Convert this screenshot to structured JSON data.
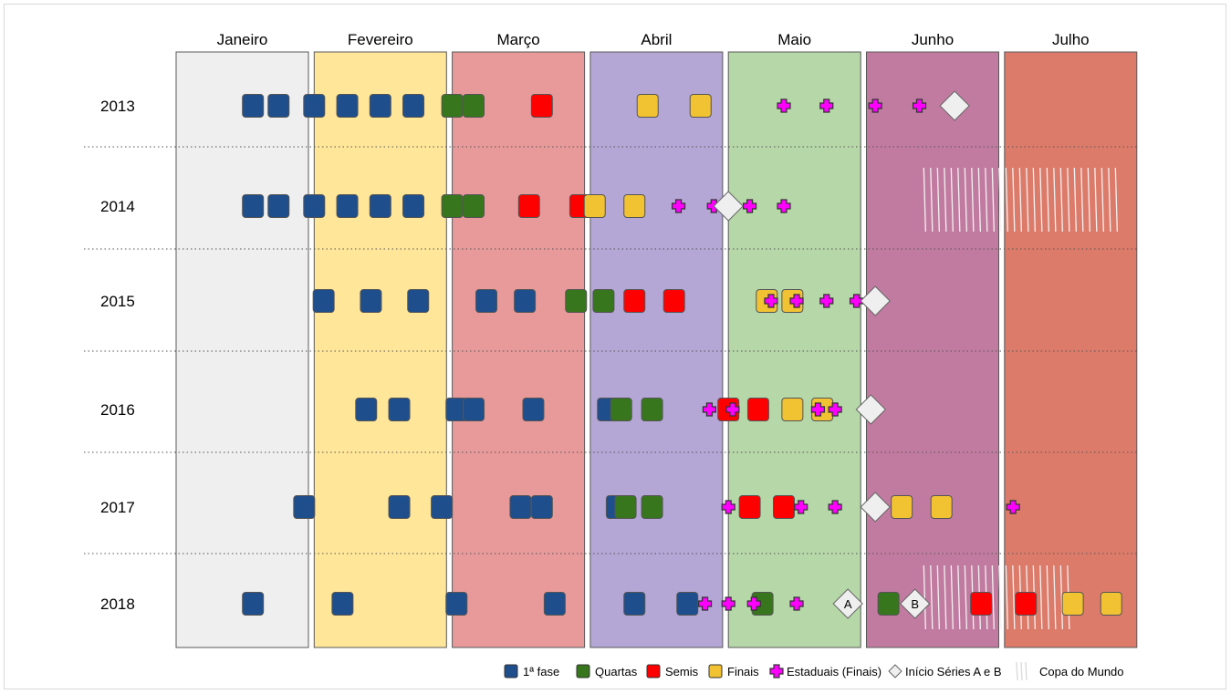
{
  "chart_data": {
    "type": "scatter",
    "title": "",
    "months": [
      "Janeiro",
      "Fevereiro",
      "Março",
      "Abril",
      "Maio",
      "Junho",
      "Julho"
    ],
    "month_colors": [
      "#efefef",
      "#ffe699",
      "#e89a9a",
      "#b4a7d6",
      "#b6d7a8",
      "#c27ba0",
      "#dd7b6a"
    ],
    "years": [
      "2013",
      "2014",
      "2015",
      "2016",
      "2017",
      "2018"
    ],
    "x_unit": "dia do ano",
    "xlim": [
      1,
      212
    ],
    "categories": {
      "fase1": {
        "label": "1ª fase",
        "color": "#1f4e8c"
      },
      "quartas": {
        "label": "Quartas",
        "color": "#38761d"
      },
      "semis": {
        "label": "Semis",
        "color": "#ff0000"
      },
      "finais": {
        "label": "Finais",
        "color": "#f1c232"
      },
      "estaduais": {
        "label": "Estaduais (Finais)",
        "color": "#ff00ff"
      },
      "inicio": {
        "label": "Início Séries A e B",
        "color": "#efefef"
      },
      "copa": {
        "label": "Copa do Mundo",
        "color": "#ffffff"
      }
    },
    "legend_order": [
      "fase1",
      "quartas",
      "semis",
      "finais",
      "estaduais",
      "inicio",
      "copa"
    ],
    "legend_position": "bottom-right",
    "series": [
      {
        "year": "2013",
        "fase1": [
          19,
          25,
          32,
          39,
          46,
          53
        ],
        "quartas": [
          60,
          65
        ],
        "semis": [
          81
        ],
        "finais": [
          104,
          116
        ],
        "estaduais": [
          134,
          144,
          154,
          164
        ],
        "inicio": [
          {
            "day": 172,
            "label": ""
          }
        ],
        "copa": [],
        "semis_late": [],
        "quartas_late": [],
        "finais_late": [],
        "estaduais_late": []
      },
      {
        "year": "2014",
        "fase1": [
          19,
          25,
          32,
          39,
          46,
          53
        ],
        "quartas": [
          60,
          65
        ],
        "semis": [
          78
        ],
        "semis2": [
          90
        ],
        "finais": [
          92,
          101
        ],
        "estaduais": [
          111,
          119,
          126,
          134
        ],
        "inicio": [
          {
            "day": 121,
            "label": ""
          }
        ],
        "copa": [
          [
            165,
            208
          ]
        ]
      },
      {
        "year": "2015",
        "fase1": [
          34,
          44,
          54,
          68,
          77
        ],
        "quartas": [
          89,
          94
        ],
        "semis": [
          101,
          110
        ],
        "finais": [
          130,
          136
        ],
        "estaduais": [
          131,
          137,
          144,
          151
        ],
        "inicio": [
          {
            "day": 154,
            "label": ""
          }
        ],
        "copa": []
      },
      {
        "year": "2016",
        "fase1": [
          43,
          50,
          61,
          65,
          79,
          95
        ],
        "quartas": [
          98,
          105
        ],
        "semis": [
          121,
          128
        ],
        "finais": [
          136,
          143
        ],
        "estaduais": [
          118,
          122,
          142,
          146
        ],
        "inicio": [
          {
            "day": 153,
            "label": ""
          }
        ],
        "copa": []
      },
      {
        "year": "2017",
        "fase1": [
          31,
          50,
          59,
          76,
          81,
          97
        ],
        "quartas": [
          99,
          105
        ],
        "semis": [
          126,
          134
        ],
        "finais": [
          160,
          169
        ],
        "estaduais": [
          121,
          138,
          146,
          184
        ],
        "inicio": [
          {
            "day": 154,
            "label": ""
          }
        ],
        "copa": []
      },
      {
        "year": "2018",
        "fase1": [
          19,
          38,
          61,
          84,
          101,
          113
        ],
        "quartas": [
          129,
          157
        ],
        "semis": [
          178,
          187
        ],
        "finais": [
          198,
          207
        ],
        "estaduais": [
          117,
          121,
          127,
          137
        ],
        "inicio": [
          {
            "day": 149,
            "label": "A"
          },
          {
            "day": 163,
            "label": "B"
          }
        ],
        "copa": [
          [
            165,
            197
          ]
        ]
      }
    ]
  }
}
